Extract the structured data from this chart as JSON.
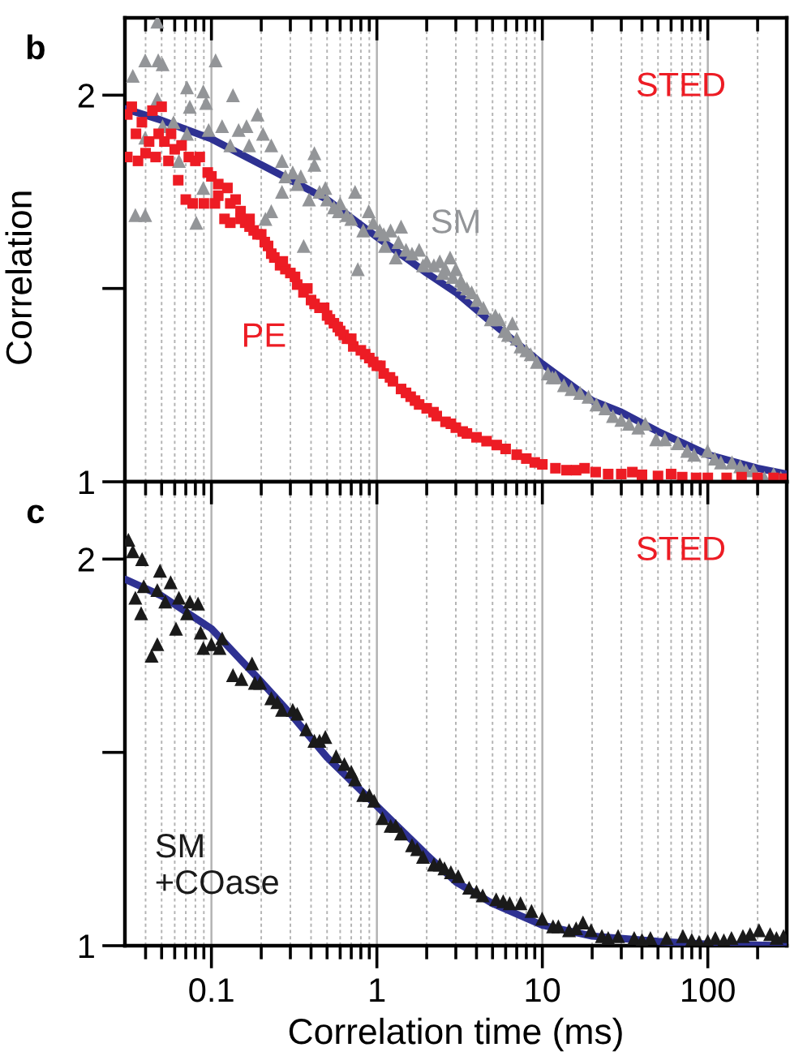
{
  "chart_data": [
    {
      "type": "scatter",
      "title": "b",
      "ylabel": "Correlation",
      "annotations": [
        "STED"
      ],
      "log": "x",
      "grid": "x",
      "tick_labels": "y",
      "xlim": [
        0.03,
        300
      ],
      "ylim": [
        1,
        2.2
      ],
      "xticks": [
        {
          "value": 0.04,
          "label": null
        },
        {
          "value": 0.05,
          "label": null
        },
        {
          "value": 0.06,
          "label": null
        },
        {
          "value": 0.07,
          "label": null
        },
        {
          "value": 0.08,
          "label": null
        },
        {
          "value": 0.09,
          "label": null
        },
        0.1,
        {
          "value": 0.2,
          "label": null
        },
        {
          "value": 0.3,
          "label": null
        },
        {
          "value": 0.4,
          "label": null
        },
        {
          "value": 0.5,
          "label": null
        },
        {
          "value": 0.6,
          "label": null
        },
        {
          "value": 0.7,
          "label": null
        },
        {
          "value": 0.8,
          "label": null
        },
        {
          "value": 0.9,
          "label": null
        },
        1,
        {
          "value": 2,
          "label": null
        },
        {
          "value": 3,
          "label": null
        },
        {
          "value": 4,
          "label": null
        },
        {
          "value": 5,
          "label": null
        },
        {
          "value": 6,
          "label": null
        },
        {
          "value": 7,
          "label": null
        },
        {
          "value": 8,
          "label": null
        },
        {
          "value": 9,
          "label": null
        },
        10,
        {
          "value": 20,
          "label": null
        },
        {
          "value": 30,
          "label": null
        },
        {
          "value": 40,
          "label": null
        },
        {
          "value": 50,
          "label": null
        },
        {
          "value": 60,
          "label": null
        },
        {
          "value": 70,
          "label": null
        },
        {
          "value": 80,
          "label": null
        },
        {
          "value": 90,
          "label": null
        },
        100,
        {
          "value": 200,
          "label": null
        }
      ],
      "yticks": [
        1,
        {
          "value": 1.5,
          "label": null
        },
        2
      ],
      "series": [
        {
          "type": "line",
          "color": "#2e3192",
          "x": [
            0.03,
            0.05,
            0.1,
            0.2,
            0.3,
            0.5,
            1,
            2,
            3,
            5,
            10,
            20,
            30,
            50,
            100,
            200,
            300
          ],
          "values": [
            1.965,
            1.935,
            1.887,
            1.82,
            1.781,
            1.73,
            1.633,
            1.54,
            1.49,
            1.41,
            1.305,
            1.21,
            1.18,
            1.13,
            1.07,
            1.035,
            1.02
          ]
        },
        {
          "name": "SM",
          "color": "#939598",
          "marker": "triangle",
          "x": [
            0.0335,
            0.0347,
            0.0398,
            0.0398,
            0.0398,
            0.0471,
            0.0471,
            0.0477,
            0.0507,
            0.0507,
            0.059,
            0.0636,
            0.0712,
            0.0712,
            0.074,
            0.081,
            0.0893,
            0.0893,
            0.0929,
            0.0962,
            0.106,
            0.116,
            0.13,
            0.135,
            0.146,
            0.163,
            0.169,
            0.19,
            0.205,
            0.212,
            0.23,
            0.23,
            0.267,
            0.267,
            0.31,
            0.347,
            0.361,
            0.389,
            0.419,
            0.419,
            0.488,
            0.5,
            0.589,
            0.6,
            0.659,
            0.738,
            0.767,
            0.827,
            0.893,
            1.04,
            1.12,
            1.21,
            1.3,
            1.4,
            1.5,
            1.63,
            1.9,
            2.21,
            2.5,
            2.77,
            2.87,
            3.22,
            3.5,
            3.74,
            4.03,
            4.88,
            5.2,
            5.89,
            6.59,
            7.38,
            8,
            9.26,
            10.8,
            12,
            13.5,
            15,
            16.9,
            19,
            21.2,
            24,
            26.7,
            30,
            33.4,
            38,
            41.9,
            48.7,
            55,
            65.9,
            75,
            82.6,
            99.7,
            110,
            120,
            140,
            157,
            170,
            189,
            220,
            250,
            276,
            0.28,
            0.33,
            0.45,
            0.55,
            0.7,
            0.95,
            1.1,
            1.35,
            1.8,
            2.0,
            2.4,
            2.6,
            3.0,
            3.3,
            4.4,
            5.5,
            6.2,
            7.0,
            8.5,
            11.5
          ],
          "values": [
            2.05,
            1.69,
            2.09,
            1.69,
            1.89,
            2.19,
            1.99,
            2.09,
            1.92,
            2.08,
            1.93,
            1.83,
            2.02,
            1.9,
            1.97,
            1.67,
            2.01,
            1.76,
            1.98,
            1.91,
            2.09,
            1.92,
            1.87,
            2.0,
            1.91,
            1.92,
            1.87,
            1.95,
            1.9,
            1.68,
            1.87,
            1.7,
            1.83,
            1.75,
            1.8,
            1.79,
            1.61,
            1.73,
            1.85,
            1.82,
            1.76,
            1.73,
            1.7,
            1.72,
            1.69,
            1.75,
            1.55,
            1.65,
            1.7,
            1.65,
            1.61,
            1.65,
            1.58,
            1.66,
            1.6,
            1.59,
            1.56,
            1.56,
            1.54,
            1.58,
            1.53,
            1.52,
            1.5,
            1.49,
            1.47,
            1.42,
            1.43,
            1.39,
            1.41,
            1.35,
            1.34,
            1.31,
            1.28,
            1.27,
            1.25,
            1.24,
            1.23,
            1.22,
            1.2,
            1.19,
            1.17,
            1.16,
            1.15,
            1.14,
            1.15,
            1.11,
            1.11,
            1.1,
            1.08,
            1.07,
            1.08,
            1.06,
            1.05,
            1.05,
            1.04,
            1.03,
            1.03,
            1.01,
            1.02,
            1.01,
            1.79,
            1.77,
            1.75,
            1.71,
            1.68,
            1.67,
            1.64,
            1.62,
            1.6,
            1.57,
            1.57,
            1.55,
            1.55,
            1.51,
            1.45,
            1.42,
            1.38,
            1.37,
            1.33,
            1.27
          ]
        },
        {
          "name": "PE",
          "color": "#ed1c24",
          "marker": "square",
          "x": [
            0.031,
            0.031,
            0.033,
            0.035,
            0.036,
            0.038,
            0.04,
            0.042,
            0.044,
            0.046,
            0.048,
            0.05,
            0.052,
            0.055,
            0.057,
            0.06,
            0.063,
            0.066,
            0.07,
            0.073,
            0.077,
            0.08,
            0.085,
            0.09,
            0.095,
            0.1,
            0.105,
            0.11,
            0.12,
            0.125,
            0.13,
            0.14,
            0.15,
            0.16,
            0.17,
            0.18,
            0.19,
            0.2,
            0.22,
            0.24,
            0.26,
            0.28,
            0.3,
            0.33,
            0.36,
            0.4,
            0.45,
            0.5,
            0.55,
            0.6,
            0.66,
            0.72,
            0.8,
            0.9,
            1.0,
            1.1,
            1.25,
            1.4,
            1.6,
            1.8,
            2.0,
            2.3,
            2.6,
            3.0,
            3.5,
            4.0,
            4.6,
            5.3,
            6.0,
            7.0,
            8.0,
            9.0,
            10,
            12,
            14,
            16,
            18,
            21,
            25,
            30,
            35,
            40,
            50,
            60,
            70,
            85,
            100,
            130,
            160,
            200,
            250,
            290,
            0.11,
            0.13,
            0.15,
            0.17,
            0.21,
            0.23,
            0.27,
            0.32,
            0.38,
            0.42,
            0.48,
            0.52,
            0.58,
            0.63,
            0.7,
            0.85,
            0.95,
            1.05,
            1.2,
            1.5,
            1.7,
            2.2,
            2.8,
            3.3
          ],
          "values": [
            1.95,
            1.84,
            1.97,
            1.9,
            1.83,
            1.93,
            1.85,
            1.88,
            1.96,
            1.84,
            1.9,
            1.97,
            1.88,
            1.83,
            1.9,
            1.86,
            1.78,
            1.87,
            1.73,
            1.84,
            1.72,
            1.83,
            1.84,
            1.72,
            1.8,
            1.79,
            1.72,
            1.77,
            1.68,
            1.76,
            1.67,
            1.73,
            1.7,
            1.67,
            1.68,
            1.65,
            1.64,
            1.64,
            1.61,
            1.58,
            1.56,
            1.55,
            1.54,
            1.51,
            1.49,
            1.47,
            1.45,
            1.43,
            1.41,
            1.39,
            1.37,
            1.35,
            1.34,
            1.32,
            1.3,
            1.28,
            1.26,
            1.24,
            1.22,
            1.2,
            1.19,
            1.17,
            1.155,
            1.14,
            1.125,
            1.115,
            1.105,
            1.095,
            1.085,
            1.07,
            1.06,
            1.05,
            1.045,
            1.035,
            1.03,
            1.03,
            1.035,
            1.025,
            1.02,
            1.02,
            1.025,
            1.018,
            1.015,
            1.02,
            1.012,
            1.01,
            1.01,
            1.01,
            1.012,
            1.01,
            1.01,
            1.008,
            1.74,
            1.72,
            1.68,
            1.66,
            1.62,
            1.59,
            1.57,
            1.53,
            1.5,
            1.46,
            1.45,
            1.42,
            1.4,
            1.38,
            1.37,
            1.33,
            1.31,
            1.3,
            1.27,
            1.23,
            1.21,
            1.18,
            1.15,
            1.13
          ]
        }
      ]
    },
    {
      "type": "scatter",
      "title": "c",
      "xlabel": "Correlation time (ms)",
      "annotations": [
        "STED"
      ],
      "log": "x",
      "grid": "x",
      "xlim": [
        0.03,
        300
      ],
      "ylim": [
        1,
        2.2
      ],
      "xticks": [
        {
          "value": 0.04,
          "label": null
        },
        {
          "value": 0.05,
          "label": null
        },
        {
          "value": 0.06,
          "label": null
        },
        {
          "value": 0.07,
          "label": null
        },
        {
          "value": 0.08,
          "label": null
        },
        {
          "value": 0.09,
          "label": null
        },
        0.1,
        {
          "value": 0.2,
          "label": null
        },
        {
          "value": 0.3,
          "label": null
        },
        {
          "value": 0.4,
          "label": null
        },
        {
          "value": 0.5,
          "label": null
        },
        {
          "value": 0.6,
          "label": null
        },
        {
          "value": 0.7,
          "label": null
        },
        {
          "value": 0.8,
          "label": null
        },
        {
          "value": 0.9,
          "label": null
        },
        1,
        {
          "value": 2,
          "label": null
        },
        {
          "value": 3,
          "label": null
        },
        {
          "value": 4,
          "label": null
        },
        {
          "value": 5,
          "label": null
        },
        {
          "value": 6,
          "label": null
        },
        {
          "value": 7,
          "label": null
        },
        {
          "value": 8,
          "label": null
        },
        {
          "value": 9,
          "label": null
        },
        10,
        {
          "value": 20,
          "label": null
        },
        {
          "value": 30,
          "label": null
        },
        {
          "value": 40,
          "label": null
        },
        {
          "value": 50,
          "label": null
        },
        {
          "value": 60,
          "label": null
        },
        {
          "value": 70,
          "label": null
        },
        {
          "value": 80,
          "label": null
        },
        {
          "value": 90,
          "label": null
        },
        100,
        {
          "value": 200,
          "label": null
        }
      ],
      "yticks": [
        1,
        {
          "value": 1.5,
          "label": null
        },
        2
      ],
      "series": [
        {
          "type": "line",
          "color": "#2e3192",
          "x": [
            0.03,
            0.05,
            0.1,
            0.2,
            0.3,
            0.5,
            1,
            2,
            3,
            5,
            10,
            20,
            50,
            100,
            300
          ],
          "values": [
            1.948,
            1.905,
            1.82,
            1.683,
            1.6,
            1.487,
            1.361,
            1.235,
            1.165,
            1.109,
            1.053,
            1.025,
            1.011,
            1.004,
            1.0
          ]
        },
        {
          "name": "SM\n+COase",
          "color": "#1a1a1a",
          "marker": "triangle",
          "x": [
            0.0315,
            0.0335,
            0.0347,
            0.0376,
            0.0381,
            0.039,
            0.0435,
            0.0471,
            0.0471,
            0.0489,
            0.0526,
            0.0567,
            0.0611,
            0.0636,
            0.0712,
            0.0741,
            0.083,
            0.0861,
            0.0893,
            0.1,
            0.112,
            0.116,
            0.135,
            0.152,
            0.176,
            0.183,
            0.197,
            0.23,
            0.25,
            0.267,
            0.31,
            0.33,
            0.374,
            0.419,
            0.45,
            0.488,
            0.567,
            0.636,
            0.7,
            0.738,
            0.827,
            0.9,
            0.962,
            1.08,
            1.21,
            1.3,
            1.4,
            1.63,
            1.75,
            1.9,
            2.21,
            2.4,
            2.56,
            2.8,
            3.1,
            3.61,
            4.0,
            4.36,
            5.26,
            5.8,
            6.35,
            7.38,
            8.6,
            9.97,
            11.6,
            12.5,
            14.5,
            16,
            17.6,
            19.7,
            22.9,
            25,
            28.7,
            35.9,
            40,
            45,
            56.4,
            70.7,
            80,
            88.6,
            100,
            111,
            125,
            139,
            163,
            180,
            204,
            238,
            260,
            287
          ],
          "values": [
            2.05,
            2.02,
            1.9,
            1.86,
            2.0,
            1.93,
            1.75,
            1.92,
            1.78,
            1.97,
            1.89,
            1.94,
            1.82,
            1.9,
            1.86,
            1.89,
            1.885,
            1.81,
            1.77,
            1.78,
            1.77,
            1.795,
            1.7,
            1.69,
            1.73,
            1.68,
            1.68,
            1.64,
            1.63,
            1.61,
            1.61,
            1.6,
            1.56,
            1.53,
            1.53,
            1.54,
            1.49,
            1.47,
            1.45,
            1.43,
            1.39,
            1.39,
            1.375,
            1.33,
            1.31,
            1.31,
            1.29,
            1.26,
            1.25,
            1.23,
            1.21,
            1.21,
            1.2,
            1.19,
            1.18,
            1.15,
            1.14,
            1.13,
            1.12,
            1.115,
            1.11,
            1.11,
            1.09,
            1.07,
            1.05,
            1.05,
            1.04,
            1.045,
            1.06,
            1.04,
            1.025,
            1.02,
            1.025,
            1.02,
            1.015,
            1.02,
            1.02,
            1.025,
            1.015,
            1.01,
            1.012,
            1.02,
            1.014,
            1.02,
            1.025,
            1.03,
            1.04,
            1.03,
            1.02,
            1.025
          ]
        }
      ]
    }
  ]
}
